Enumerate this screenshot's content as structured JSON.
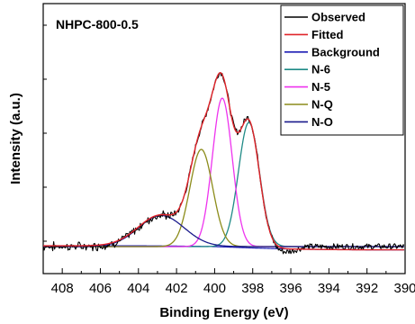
{
  "chart_data": {
    "type": "line",
    "title": "",
    "annotation": "NHPC-800-0.5",
    "xlabel": "Binding Energy (eV)",
    "ylabel": "Intensity (a.u.)",
    "xlim": [
      409,
      390
    ],
    "x_reversed": true,
    "ylim": [
      0,
      1.0
    ],
    "y_ticks_labeled": false,
    "x_ticks": [
      408,
      406,
      404,
      402,
      400,
      398,
      396,
      394,
      392,
      390
    ],
    "x_tick_labels": [
      "408",
      "406",
      "404",
      "402",
      "400",
      "398",
      "396",
      "394",
      "392",
      "390"
    ],
    "grid": false,
    "legend_position": "top-right",
    "baseline_y": 0.1,
    "background": {
      "name": "Background",
      "color": "#1c1cb4",
      "points": [
        [
          409,
          0.103
        ],
        [
          404,
          0.103
        ],
        [
          402,
          0.102
        ],
        [
          400,
          0.1
        ],
        [
          398,
          0.095
        ],
        [
          396,
          0.091
        ],
        [
          394,
          0.089
        ],
        [
          392,
          0.088
        ],
        [
          390,
          0.088
        ]
      ]
    },
    "components": [
      {
        "name": "N-6",
        "color": "#1f8a86",
        "center": 398.2,
        "sigma": 0.55,
        "height": 0.46
      },
      {
        "name": "N-5",
        "color": "#ee33ee",
        "center": 399.6,
        "sigma": 0.52,
        "height": 0.55
      },
      {
        "name": "N-Q",
        "color": "#8c8c1a",
        "center": 400.7,
        "sigma": 0.6,
        "height": 0.36
      },
      {
        "name": "N-O",
        "color": "#1a1a8c",
        "center": 402.8,
        "sigma": 1.2,
        "height": 0.115
      }
    ],
    "series": [
      {
        "name": "Observed",
        "color": "#000000"
      },
      {
        "name": "Fitted",
        "color": "#e0242a"
      },
      {
        "name": "Background",
        "color": "#1c1cb4"
      },
      {
        "name": "N-6",
        "color": "#1f8a86"
      },
      {
        "name": "N-5",
        "color": "#ee33ee"
      },
      {
        "name": "N-Q",
        "color": "#8c8c1a"
      },
      {
        "name": "N-O",
        "color": "#1a1a8c"
      }
    ]
  }
}
